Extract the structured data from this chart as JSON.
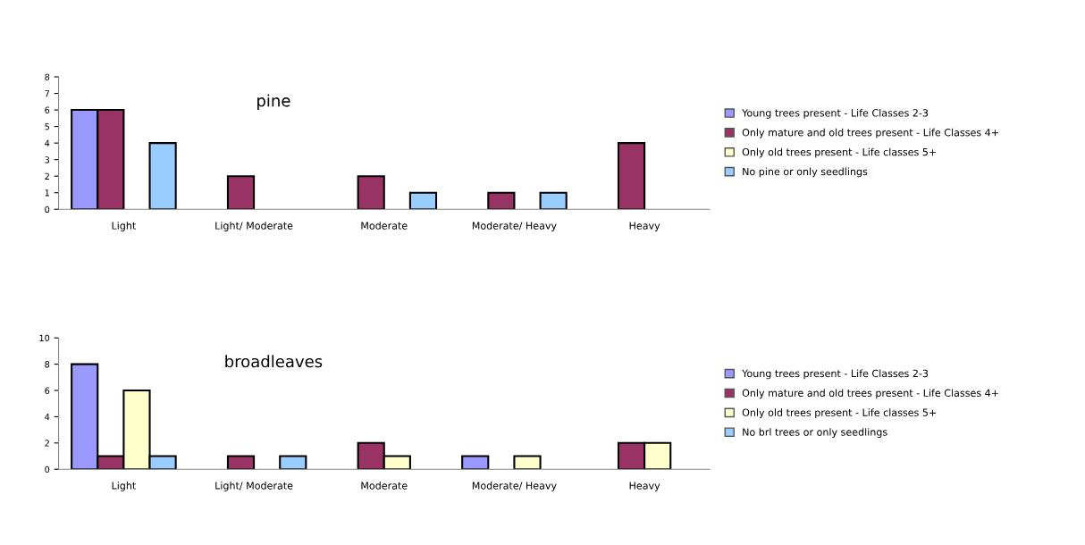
{
  "chart_data": [
    {
      "type": "bar",
      "title": "pine",
      "categories": [
        "Light",
        "Light/ Moderate",
        "Moderate",
        "Moderate/ Heavy",
        "Heavy"
      ],
      "ylim": [
        0,
        8
      ],
      "yticks": [
        0,
        1,
        2,
        3,
        4,
        5,
        6,
        7,
        8
      ],
      "grid": false,
      "legend": "right",
      "series": [
        {
          "name": "Young trees present - Life Classes 2-3",
          "color": "#9999ff",
          "values": [
            6,
            null,
            null,
            null,
            null
          ]
        },
        {
          "name": "Only mature and old trees present - Life Classes 4+",
          "color": "#993366",
          "values": [
            6,
            2,
            2,
            1,
            4
          ]
        },
        {
          "name": "Only old trees present - Life classes 5+",
          "color": "#ffffcc",
          "values": [
            null,
            null,
            null,
            null,
            null
          ]
        },
        {
          "name": "No pine or only seedlings",
          "color": "#99ccff",
          "values": [
            4,
            null,
            1,
            1,
            null
          ]
        }
      ]
    },
    {
      "type": "bar",
      "title": "broadleaves",
      "categories": [
        "Light",
        "Light/ Moderate",
        "Moderate",
        "Moderate/ Heavy",
        "Heavy"
      ],
      "ylim": [
        0,
        10
      ],
      "yticks": [
        0,
        2,
        4,
        6,
        8,
        10
      ],
      "grid": false,
      "legend": "right",
      "series": [
        {
          "name": "Young trees present - Life Classes 2-3",
          "color": "#9999ff",
          "values": [
            8,
            null,
            null,
            1,
            null
          ]
        },
        {
          "name": "Only mature and old trees present - Life Classes 4+",
          "color": "#993366",
          "values": [
            1,
            1,
            2,
            null,
            2
          ]
        },
        {
          "name": "Only old trees present - Life classes 5+",
          "color": "#ffffcc",
          "values": [
            6,
            null,
            1,
            1,
            2
          ]
        },
        {
          "name": "No brl trees or only seedlings",
          "color": "#99ccff",
          "values": [
            1,
            1,
            null,
            null,
            null
          ]
        }
      ]
    }
  ]
}
